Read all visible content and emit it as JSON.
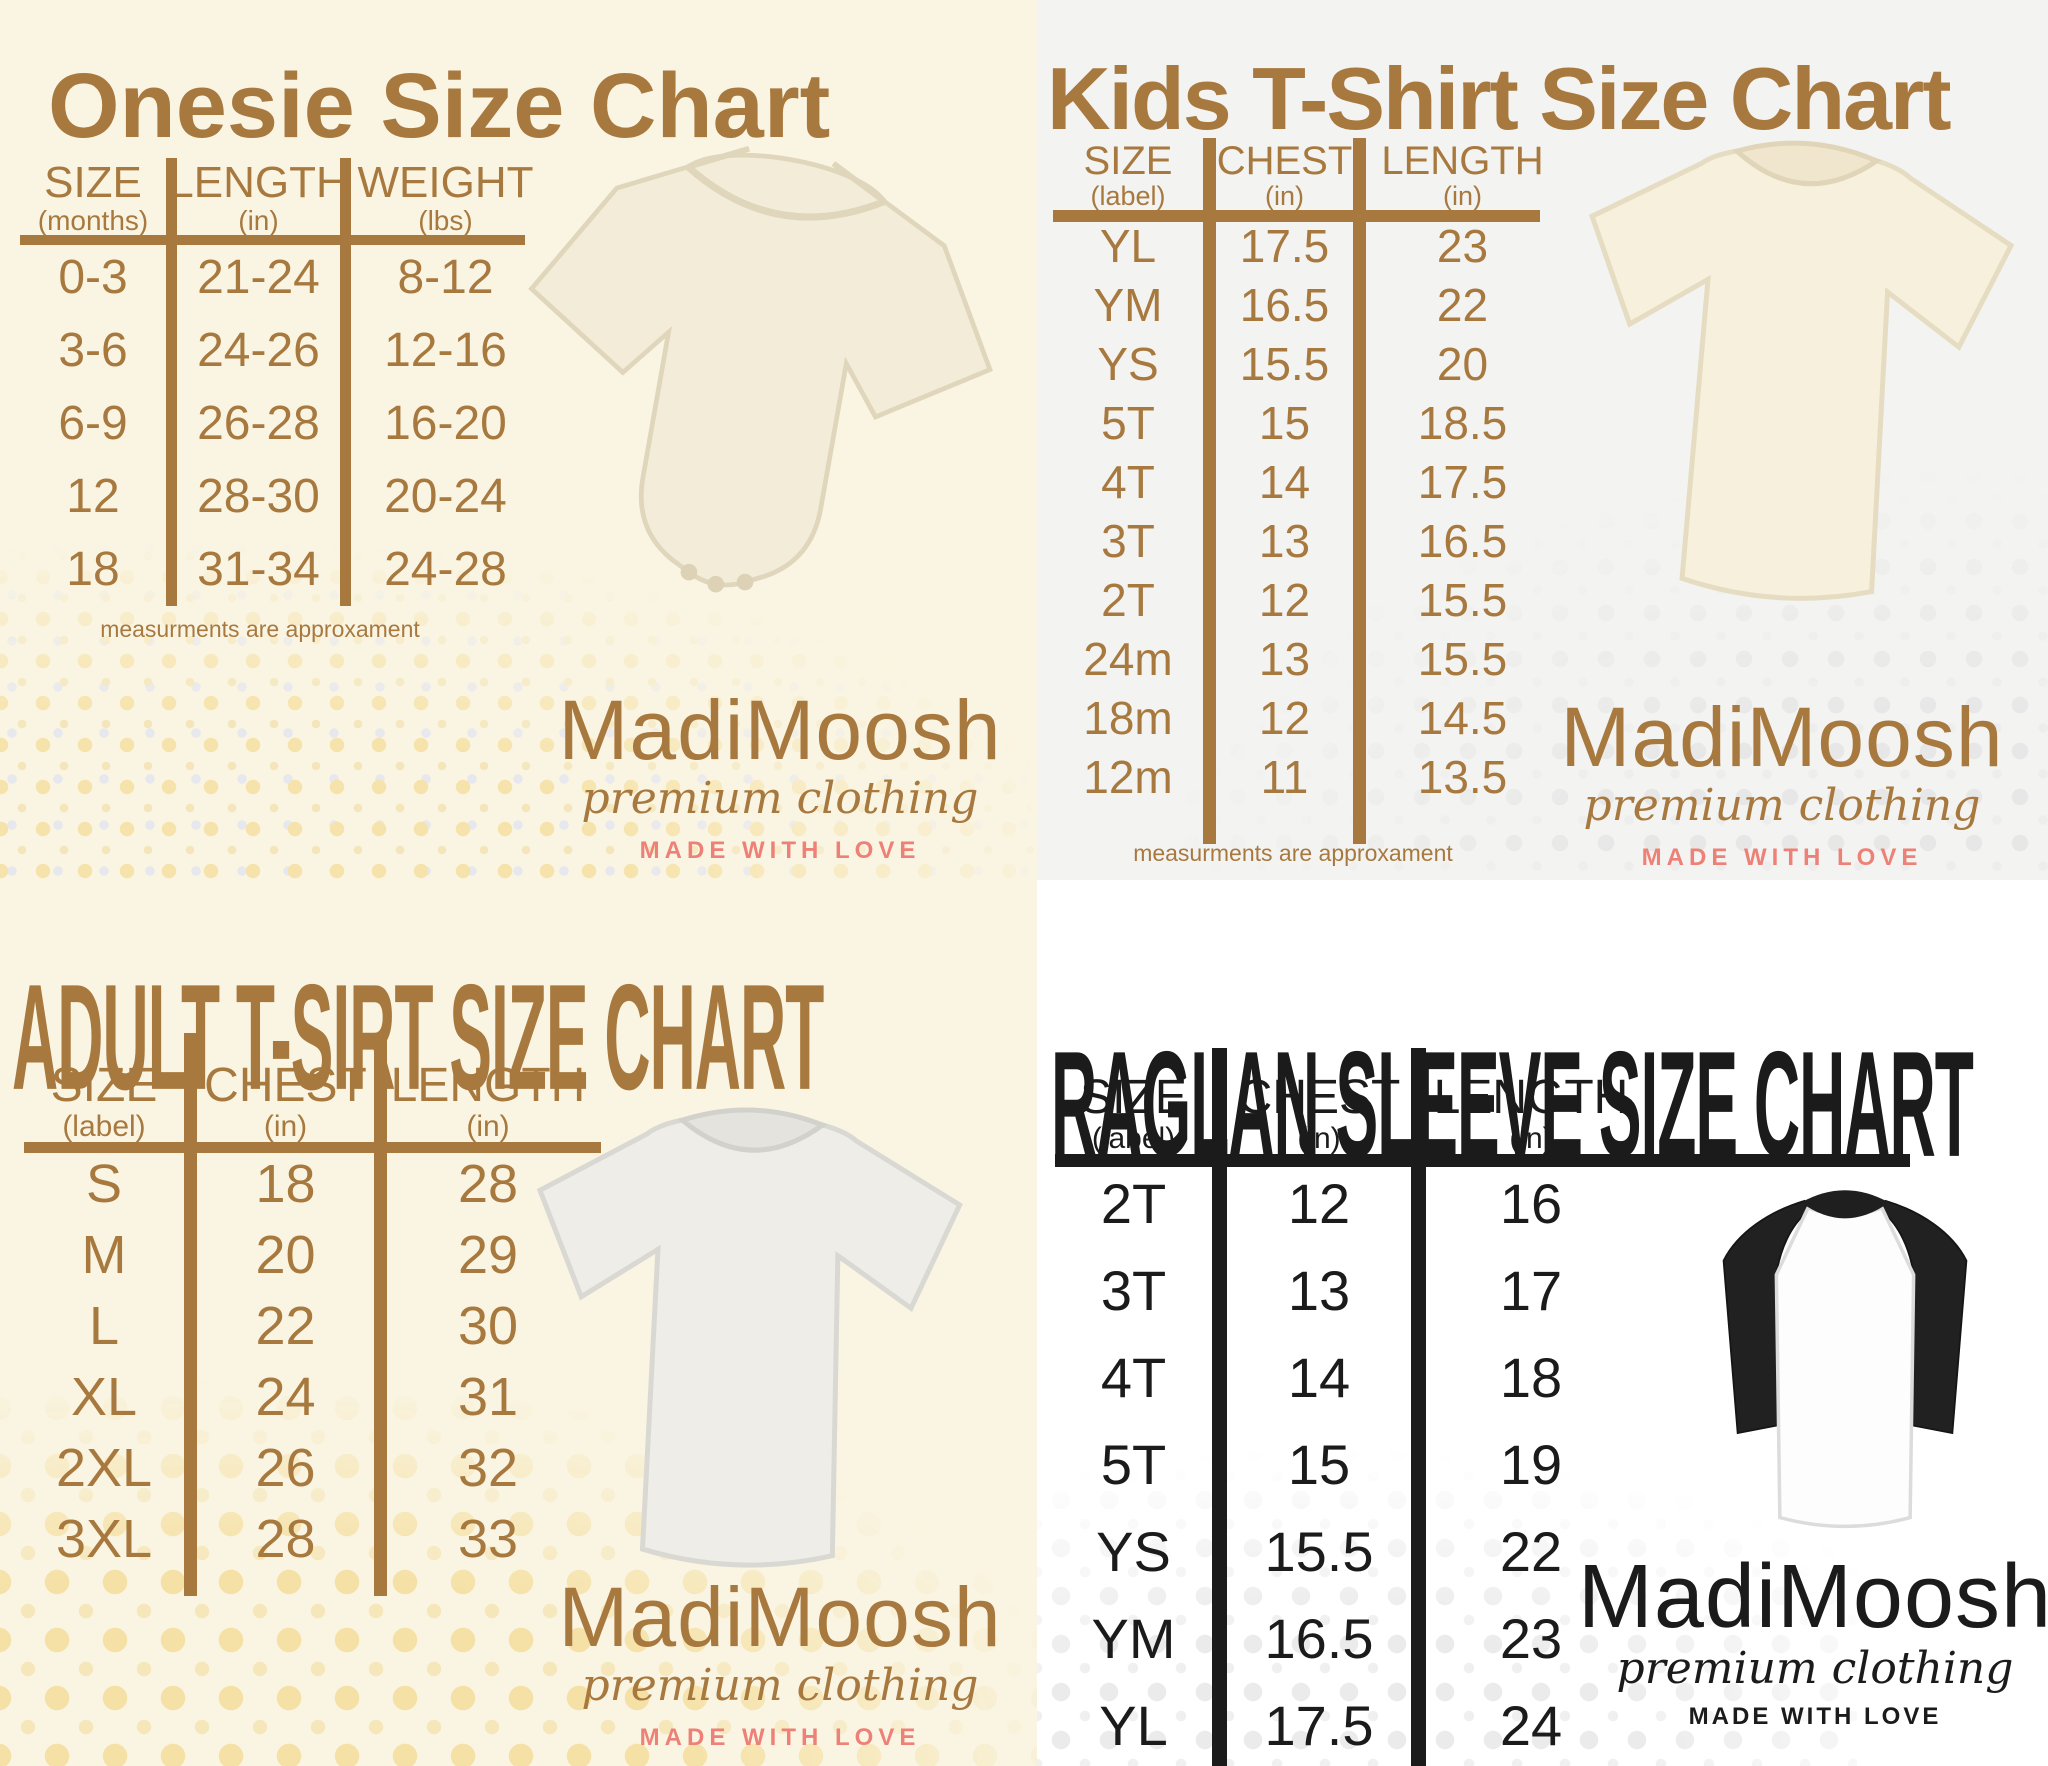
{
  "colors": {
    "brown": "#a8793f",
    "coral": "#ee8177",
    "black": "#1b1b1b",
    "cream_background": "#faf5e3",
    "gray_background": "#f3f3f1",
    "white_background": "#ffffff",
    "dot_yellow": "#f5e1a6",
    "dot_gray": "#e7e7e7"
  },
  "brand": {
    "name": "MadiMoosh",
    "tagline": "premium clothing",
    "slogan": "MADE WITH LOVE"
  },
  "charts": [
    {
      "title": "Onesie Size Chart",
      "columns": [
        {
          "label": "SIZE",
          "sub": "(months)"
        },
        {
          "label": "LENGTH",
          "sub": "(in)"
        },
        {
          "label": "WEIGHT",
          "sub": "(lbs)"
        }
      ],
      "rows": [
        [
          "0-3",
          "21-24",
          "8-12"
        ],
        [
          "3-6",
          "24-26",
          "12-16"
        ],
        [
          "6-9",
          "26-28",
          "16-20"
        ],
        [
          "12",
          "28-30",
          "20-24"
        ],
        [
          "18",
          "31-34",
          "24-28"
        ]
      ],
      "footnote": "measurments are approxament",
      "image": "onesie"
    },
    {
      "title": "Kids T-Shirt Size Chart",
      "columns": [
        {
          "label": "SIZE",
          "sub": "(label)"
        },
        {
          "label": "CHEST",
          "sub": "(in)"
        },
        {
          "label": "LENGTH",
          "sub": "(in)"
        }
      ],
      "rows": [
        [
          "YL",
          "17.5",
          "23"
        ],
        [
          "YM",
          "16.5",
          "22"
        ],
        [
          "YS",
          "15.5",
          "20"
        ],
        [
          "5T",
          "15",
          "18.5"
        ],
        [
          "4T",
          "14",
          "17.5"
        ],
        [
          "3T",
          "13",
          "16.5"
        ],
        [
          "2T",
          "12",
          "15.5"
        ],
        [
          "24m",
          "13",
          "15.5"
        ],
        [
          "18m",
          "12",
          "14.5"
        ],
        [
          "12m",
          "11",
          "13.5"
        ]
      ],
      "footnote": "measurments are approxament",
      "image": "kids-tshirt"
    },
    {
      "title": "ADULT T-SIRT SIZE CHART",
      "columns": [
        {
          "label": "SIZE",
          "sub": "(label)"
        },
        {
          "label": "CHEST",
          "sub": "(in)"
        },
        {
          "label": "LENGTH",
          "sub": "(in)"
        }
      ],
      "rows": [
        [
          "S",
          "18",
          "28"
        ],
        [
          "M",
          "20",
          "29"
        ],
        [
          "L",
          "22",
          "30"
        ],
        [
          "XL",
          "24",
          "31"
        ],
        [
          "2XL",
          "26",
          "32"
        ],
        [
          "3XL",
          "28",
          "33"
        ]
      ],
      "footnote": "",
      "image": "adult-tshirt"
    },
    {
      "title": "RAGLAN SLEEVE SIZE CHART",
      "columns": [
        {
          "label": "SIZE",
          "sub": "(label)"
        },
        {
          "label": "CHEST",
          "sub": "(in)"
        },
        {
          "label": "LENGTH",
          "sub": "(in)"
        }
      ],
      "rows": [
        [
          "2T",
          "12",
          "16"
        ],
        [
          "3T",
          "13",
          "17"
        ],
        [
          "4T",
          "14",
          "18"
        ],
        [
          "5T",
          "15",
          "19"
        ],
        [
          "YS",
          "15.5",
          "22"
        ],
        [
          "YM",
          "16.5",
          "23"
        ],
        [
          "YL",
          "17.5",
          "24"
        ]
      ],
      "footnote": "",
      "image": "raglan-tee"
    }
  ]
}
